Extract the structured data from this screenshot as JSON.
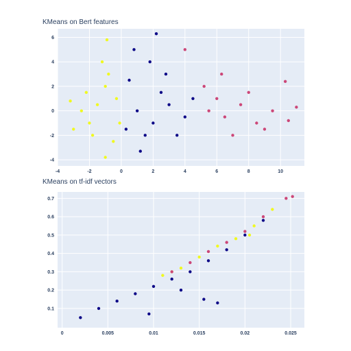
{
  "chart_data": [
    {
      "type": "scatter",
      "title": "KMeans on Bert features",
      "xlabel": "",
      "ylabel": "",
      "xlim": [
        -4,
        11.5
      ],
      "ylim": [
        -4.5,
        6.7
      ],
      "x_ticks": [
        -4,
        -2,
        0,
        2,
        4,
        6,
        8,
        10
      ],
      "y_ticks": [
        -4,
        -2,
        0,
        2,
        4,
        6
      ],
      "grid": true,
      "series": [
        {
          "color": "#f0f921",
          "values": [
            [
              -1.5,
              0.5
            ],
            [
              -2.0,
              -1.0
            ],
            [
              -1.0,
              2.0
            ],
            [
              -2.5,
              0.0
            ],
            [
              -0.5,
              -2.5
            ],
            [
              -1.2,
              4.0
            ],
            [
              -3.0,
              -1.5
            ],
            [
              -0.3,
              1.0
            ],
            [
              -1.8,
              -2.0
            ],
            [
              -0.8,
              3.0
            ],
            [
              -2.2,
              1.5
            ],
            [
              -0.1,
              -1.0
            ],
            [
              -3.2,
              0.8
            ],
            [
              -1.0,
              -3.8
            ],
            [
              -0.9,
              5.8
            ]
          ]
        },
        {
          "color": "#0d0887",
          "values": [
            [
              1.0,
              0.0
            ],
            [
              2.0,
              -1.0
            ],
            [
              0.5,
              2.5
            ],
            [
              3.0,
              0.5
            ],
            [
              1.5,
              -2.0
            ],
            [
              2.5,
              1.5
            ],
            [
              0.3,
              -1.5
            ],
            [
              4.0,
              -0.5
            ],
            [
              1.8,
              4.0
            ],
            [
              2.2,
              6.3
            ],
            [
              3.5,
              -2.0
            ],
            [
              0.8,
              5.0
            ],
            [
              4.5,
              1.0
            ],
            [
              1.2,
              -3.3
            ],
            [
              2.8,
              3.0
            ]
          ]
        },
        {
          "color": "#cc4778",
          "values": [
            [
              5.5,
              0.0
            ],
            [
              6.5,
              -0.5
            ],
            [
              7.5,
              0.5
            ],
            [
              8.5,
              -1.0
            ],
            [
              9.5,
              0.0
            ],
            [
              10.5,
              -0.8
            ],
            [
              6.0,
              1.0
            ],
            [
              7.0,
              -2.0
            ],
            [
              8.0,
              1.5
            ],
            [
              9.0,
              -1.5
            ],
            [
              5.2,
              2.0
            ],
            [
              4.0,
              5.0
            ],
            [
              6.3,
              3.0
            ],
            [
              10.3,
              2.4
            ],
            [
              11.0,
              0.3
            ]
          ]
        }
      ]
    },
    {
      "type": "scatter",
      "title": "KMeans on tf-idf vectors",
      "xlabel": "",
      "ylabel": "",
      "xlim": [
        -0.0005,
        0.0265
      ],
      "ylim": [
        -0.005,
        0.735
      ],
      "x_ticks": [
        0,
        0.005,
        0.01,
        0.015,
        0.02,
        0.025
      ],
      "x_tick_labels": [
        "0",
        "0.005",
        "0.01",
        "0.015",
        "0.02",
        "0.025"
      ],
      "y_ticks": [
        0.1,
        0.2,
        0.3,
        0.4,
        0.5,
        0.6,
        0.7
      ],
      "y_tick_labels": [
        "0.1",
        "0.2",
        "0.3",
        "0.4",
        "0.5",
        "0.6",
        "0.7"
      ],
      "grid": true,
      "series": [
        {
          "color": "#0d0887",
          "values": [
            [
              0.002,
              0.05
            ],
            [
              0.004,
              0.1
            ],
            [
              0.006,
              0.14
            ],
            [
              0.008,
              0.18
            ],
            [
              0.01,
              0.22
            ],
            [
              0.012,
              0.26
            ],
            [
              0.014,
              0.3
            ],
            [
              0.016,
              0.36
            ],
            [
              0.018,
              0.42
            ],
            [
              0.02,
              0.5
            ],
            [
              0.022,
              0.58
            ],
            [
              0.0095,
              0.07
            ],
            [
              0.0155,
              0.15
            ],
            [
              0.017,
              0.13
            ],
            [
              0.013,
              0.2
            ]
          ]
        },
        {
          "color": "#f0f921",
          "values": [
            [
              0.011,
              0.28
            ],
            [
              0.013,
              0.32
            ],
            [
              0.015,
              0.38
            ],
            [
              0.017,
              0.44
            ],
            [
              0.019,
              0.48
            ],
            [
              0.021,
              0.55
            ],
            [
              0.023,
              0.64
            ],
            [
              0.0205,
              0.5
            ],
            [
              0.012,
              0.3
            ]
          ]
        },
        {
          "color": "#cc4778",
          "values": [
            [
              0.012,
              0.3
            ],
            [
              0.014,
              0.35
            ],
            [
              0.016,
              0.41
            ],
            [
              0.018,
              0.46
            ],
            [
              0.02,
              0.52
            ],
            [
              0.022,
              0.6
            ],
            [
              0.0245,
              0.7
            ],
            [
              0.0252,
              0.71
            ]
          ]
        }
      ]
    }
  ]
}
